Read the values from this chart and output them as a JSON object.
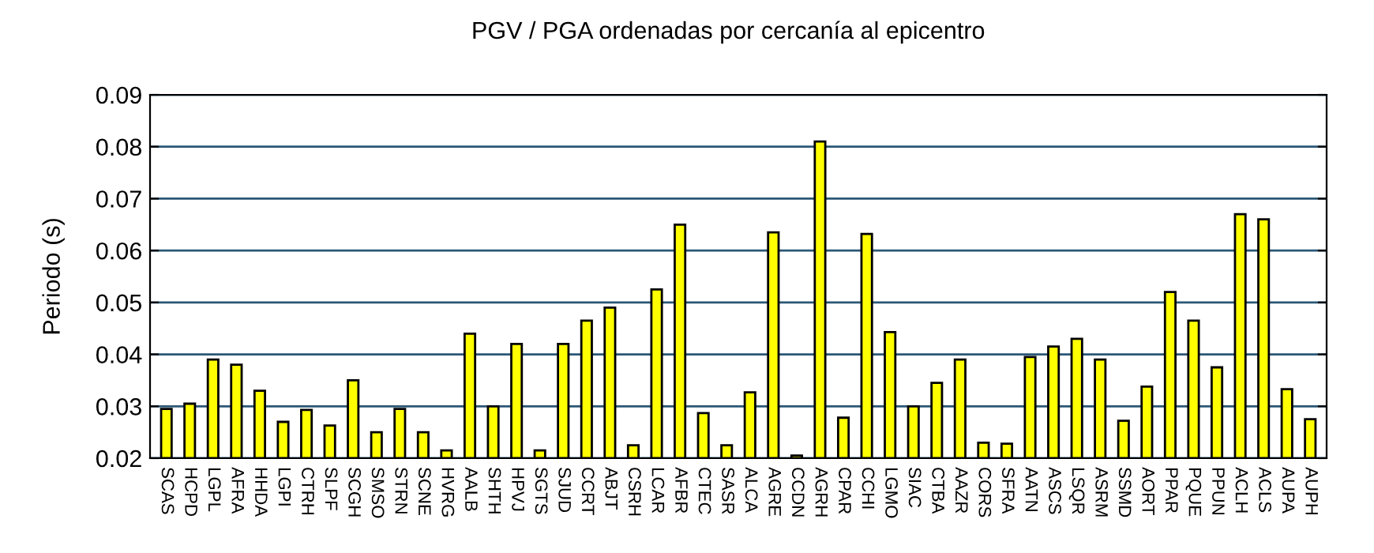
{
  "chart_data": {
    "type": "bar",
    "title": "PGV / PGA ordenadas por cercanía al epicentro",
    "ylabel": "Periodo (s)",
    "categories": [
      "SCAS",
      "HCPD",
      "LGPL",
      "AFRA",
      "HHDA",
      "LGPI",
      "CTRH",
      "SLPF",
      "SCGH",
      "SMSO",
      "STRN",
      "SCNE",
      "HVRG",
      "AALB",
      "SHTH",
      "HPVJ",
      "SGTS",
      "SJUD",
      "CCRT",
      "ABJT",
      "CSRH",
      "LCAR",
      "AFBR",
      "CTEC",
      "SASR",
      "ALCA",
      "AGRE",
      "CCDN",
      "AGRH",
      "CPAR",
      "CCHI",
      "LGMO",
      "SIAC",
      "CTBA",
      "AAZR",
      "CORS",
      "SFRA",
      "AATN",
      "ASCS",
      "LSQR",
      "ASRM",
      "SSMD",
      "AORT",
      "PPAR",
      "PQUE",
      "PPUN",
      "ACLH",
      "ACLS",
      "AUPA",
      "AUPH"
    ],
    "values": [
      0.0295,
      0.0305,
      0.039,
      0.038,
      0.033,
      0.027,
      0.0293,
      0.0263,
      0.035,
      0.025,
      0.0295,
      0.025,
      0.0215,
      0.044,
      0.03,
      0.042,
      0.0215,
      0.042,
      0.0465,
      0.049,
      0.0225,
      0.0525,
      0.065,
      0.0287,
      0.0225,
      0.0327,
      0.0635,
      0.0205,
      0.081,
      0.0278,
      0.0632,
      0.0443,
      0.03,
      0.0345,
      0.039,
      0.023,
      0.0228,
      0.0395,
      0.0415,
      0.043,
      0.039,
      0.0272,
      0.0338,
      0.052,
      0.0465,
      0.0375,
      0.067,
      0.066,
      0.0333,
      0.0275
    ],
    "color": "#ffff00",
    "ylim": [
      0.02,
      0.09
    ],
    "yticks": [
      0.02,
      0.03,
      0.04,
      0.05,
      0.06,
      0.07,
      0.08,
      0.09
    ],
    "grid": "y",
    "legend": false
  }
}
